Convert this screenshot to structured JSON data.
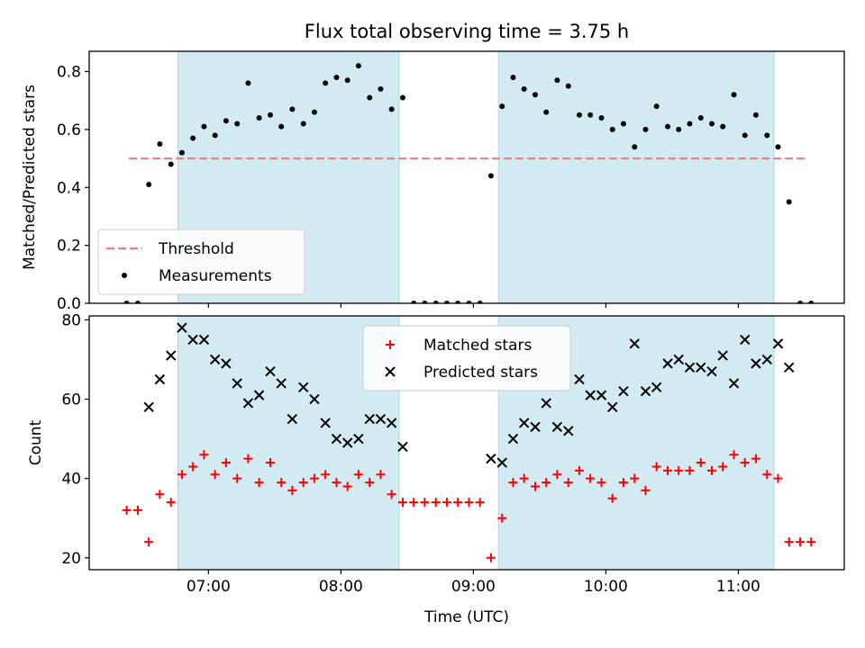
{
  "chart_data": {
    "title": "Flux total observing time = 3.75 h",
    "xlabel": "Time (UTC)",
    "x_ticks": [
      "07:00",
      "08:00",
      "09:00",
      "10:00",
      "11:00"
    ],
    "shaded_color": "#add8e6",
    "x_range_hours": [
      6.1,
      11.8
    ],
    "shaded_regions": [
      [
        6.77,
        8.44
      ],
      [
        9.19,
        11.27
      ]
    ],
    "panels": [
      {
        "type": "scatter",
        "ylabel": "Matched/Predicted stars",
        "ylim": [
          0,
          0.87
        ],
        "y_ticks": [
          0.0,
          0.2,
          0.4,
          0.6,
          0.8
        ],
        "legend": "lower-left",
        "threshold": {
          "name": "Threshold",
          "value": 0.5,
          "x": [
            6.4,
            11.5
          ],
          "color": "#f08080"
        },
        "series": [
          {
            "name": "Measurements",
            "marker": "dot",
            "color": "#000000",
            "x": [
              6.383,
              6.467,
              6.55,
              6.633,
              6.717,
              6.8,
              6.883,
              6.967,
              7.05,
              7.133,
              7.217,
              7.3,
              7.383,
              7.467,
              7.55,
              7.633,
              7.717,
              7.8,
              7.883,
              7.967,
              8.05,
              8.133,
              8.217,
              8.3,
              8.383,
              8.467,
              8.55,
              8.633,
              8.717,
              8.8,
              8.883,
              8.967,
              9.05,
              9.133,
              9.217,
              9.3,
              9.383,
              9.467,
              9.55,
              9.633,
              9.717,
              9.8,
              9.883,
              9.967,
              10.05,
              10.133,
              10.217,
              10.3,
              10.383,
              10.467,
              10.55,
              10.633,
              10.717,
              10.8,
              10.883,
              10.967,
              11.05,
              11.133,
              11.217,
              11.3,
              11.383,
              11.467,
              11.55
            ],
            "y": [
              0.0,
              0.0,
              0.41,
              0.55,
              0.48,
              0.52,
              0.57,
              0.61,
              0.58,
              0.63,
              0.62,
              0.76,
              0.64,
              0.65,
              0.61,
              0.67,
              0.62,
              0.66,
              0.76,
              0.78,
              0.77,
              0.82,
              0.71,
              0.74,
              0.67,
              0.71,
              0.0,
              0.0,
              0.0,
              0.0,
              0.0,
              0.0,
              0.0,
              0.44,
              0.68,
              0.78,
              0.74,
              0.72,
              0.66,
              0.77,
              0.75,
              0.65,
              0.65,
              0.64,
              0.6,
              0.62,
              0.54,
              0.6,
              0.68,
              0.61,
              0.6,
              0.62,
              0.64,
              0.62,
              0.61,
              0.72,
              0.58,
              0.65,
              0.58,
              0.54,
              0.35,
              0.0,
              0.0
            ]
          }
        ]
      },
      {
        "type": "scatter",
        "ylabel": "Count",
        "ylim": [
          17,
          81
        ],
        "y_ticks": [
          20,
          40,
          60,
          80
        ],
        "legend": "upper-center",
        "series": [
          {
            "name": "Matched stars",
            "marker": "plus",
            "color": "#ff0000",
            "x": [
              6.383,
              6.467,
              6.55,
              6.633,
              6.717,
              6.8,
              6.883,
              6.967,
              7.05,
              7.133,
              7.217,
              7.3,
              7.383,
              7.467,
              7.55,
              7.633,
              7.717,
              7.8,
              7.883,
              7.967,
              8.05,
              8.133,
              8.217,
              8.3,
              8.383,
              8.467,
              8.55,
              8.633,
              8.717,
              8.8,
              8.883,
              8.967,
              9.05,
              9.133,
              9.217,
              9.3,
              9.383,
              9.467,
              9.55,
              9.633,
              9.717,
              9.8,
              9.883,
              9.967,
              10.05,
              10.133,
              10.217,
              10.3,
              10.383,
              10.467,
              10.55,
              10.633,
              10.717,
              10.8,
              10.883,
              10.967,
              11.05,
              11.133,
              11.217,
              11.3,
              11.383,
              11.467,
              11.55
            ],
            "y": [
              32,
              32,
              24,
              36,
              34,
              41,
              43,
              46,
              41,
              44,
              40,
              45,
              39,
              44,
              39,
              37,
              39,
              40,
              41,
              39,
              38,
              41,
              39,
              41,
              36,
              34,
              34,
              34,
              34,
              34,
              34,
              34,
              34,
              20,
              30,
              39,
              40,
              38,
              39,
              41,
              39,
              42,
              40,
              39,
              35,
              39,
              40,
              37,
              43,
              42,
              42,
              42,
              44,
              42,
              43,
              46,
              44,
              45,
              41,
              40,
              24,
              24,
              24
            ]
          },
          {
            "name": "Predicted stars",
            "marker": "x",
            "color": "#000000",
            "x": [
              6.55,
              6.633,
              6.717,
              6.8,
              6.883,
              6.967,
              7.05,
              7.133,
              7.217,
              7.3,
              7.383,
              7.467,
              7.55,
              7.633,
              7.717,
              7.8,
              7.883,
              7.967,
              8.05,
              8.133,
              8.217,
              8.3,
              8.383,
              8.467,
              9.133,
              9.217,
              9.3,
              9.383,
              9.467,
              9.55,
              9.633,
              9.717,
              9.8,
              9.883,
              9.967,
              10.05,
              10.133,
              10.217,
              10.3,
              10.383,
              10.467,
              10.55,
              10.633,
              10.717,
              10.8,
              10.883,
              10.967,
              11.05,
              11.133,
              11.217,
              11.3,
              11.383
            ],
            "y": [
              58,
              65,
              71,
              78,
              75,
              75,
              70,
              69,
              64,
              59,
              61,
              67,
              64,
              55,
              63,
              60,
              54,
              50,
              49,
              50,
              55,
              55,
              54,
              48,
              45,
              44,
              50,
              54,
              53,
              59,
              53,
              52,
              65,
              61,
              61,
              58,
              62,
              74,
              62,
              63,
              69,
              70,
              68,
              68,
              67,
              71,
              64,
              75,
              69,
              70,
              74,
              68
            ]
          }
        ]
      }
    ]
  }
}
